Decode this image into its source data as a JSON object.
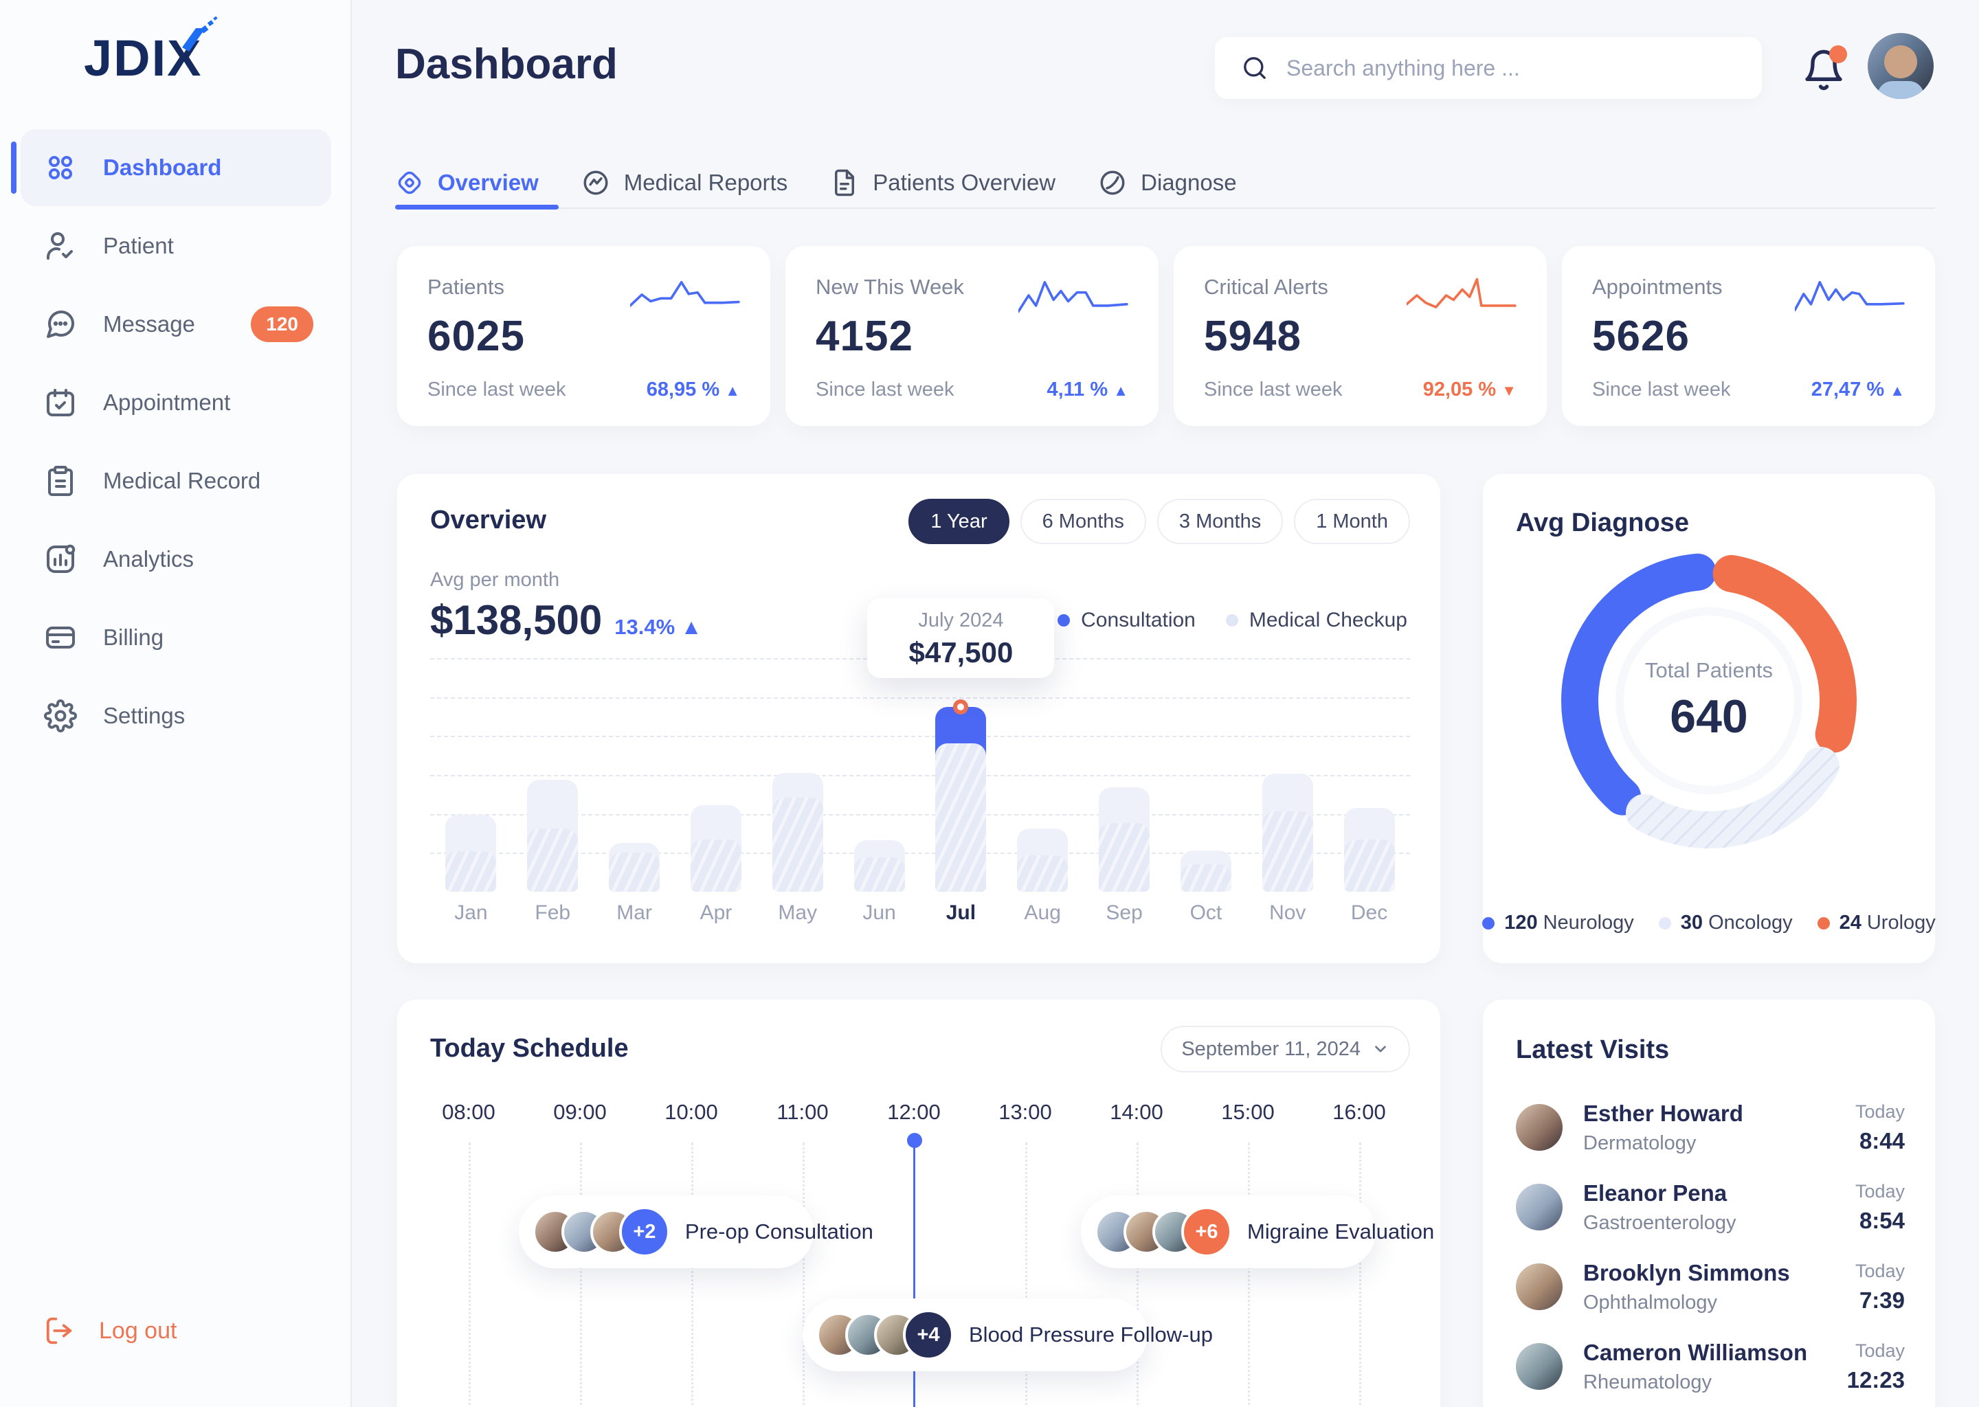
{
  "brand": {
    "name": "JDIX"
  },
  "sidebar": {
    "items": [
      {
        "label": "Dashboard",
        "icon": "grid-icon",
        "active": true
      },
      {
        "label": "Patient",
        "icon": "patient-icon",
        "active": false
      },
      {
        "label": "Message",
        "icon": "message-icon",
        "active": false,
        "badge": "120"
      },
      {
        "label": "Appointment",
        "icon": "appointment-icon",
        "active": false
      },
      {
        "label": "Medical Record",
        "icon": "medical-record-icon",
        "active": false
      },
      {
        "label": "Analytics",
        "icon": "analytics-icon",
        "active": false
      },
      {
        "label": "Billing",
        "icon": "billing-icon",
        "active": false
      },
      {
        "label": "Settings",
        "icon": "settings-icon",
        "active": false
      }
    ],
    "logout_label": "Log out"
  },
  "header": {
    "title": "Dashboard",
    "search_placeholder": "Search anything here ..."
  },
  "tabs": [
    {
      "label": "Overview",
      "icon": "overview-tab-icon",
      "active": true
    },
    {
      "label": "Medical Reports",
      "icon": "medical-reports-tab-icon",
      "active": false
    },
    {
      "label": "Patients Overview",
      "icon": "patients-overview-tab-icon",
      "active": false
    },
    {
      "label": "Diagnose",
      "icon": "diagnose-tab-icon",
      "active": false
    }
  ],
  "stat_cards": [
    {
      "label": "Patients",
      "value": "6025",
      "sub": "Since last week",
      "delta": "68,95 %",
      "direction": "up",
      "accent": "#4a6bf5",
      "spark": "0,40 16,25 28,34 42,30 56,30 70,8 80,24 92,22 102,36 126,36 148,35"
    },
    {
      "label": "New This Week",
      "value": "4152",
      "sub": "Since last week",
      "delta": "4,11 %",
      "direction": "up",
      "accent": "#4a6bf5",
      "spark": "0,48 14,26 24,40 36,8 48,32 58,20 68,34 80,22 92,22 102,40 122,40 148,38"
    },
    {
      "label": "Critical Alerts",
      "value": "5948",
      "sub": "Since last week",
      "delta": "92,05 %",
      "direction": "down",
      "accent": "#f0714c",
      "spark": "0,38 14,26 26,36 40,42 54,26 64,32 76,18 86,28 96,4 102,40 122,40 148,40"
    },
    {
      "label": "Appointments",
      "value": "5626",
      "sub": "Since last week",
      "delta": "27,47 %",
      "direction": "up",
      "accent": "#4a6bf5",
      "spark": "0,46 12,24 22,38 34,8 46,32 56,18 66,32 78,22 88,24 98,38 118,38 148,37"
    }
  ],
  "overview": {
    "title": "Overview",
    "range_options": [
      {
        "label": "1 Year",
        "active": true
      },
      {
        "label": "6 Months",
        "active": false
      },
      {
        "label": "3 Months",
        "active": false
      },
      {
        "label": "1 Month",
        "active": false
      }
    ],
    "avg_label": "Avg per month",
    "avg_value": "$138,500",
    "avg_delta": "13.4%",
    "legend": [
      {
        "label": "Consultation",
        "color": "#4a6bf5"
      },
      {
        "label": "Medical Checkup",
        "color": "#dfe6f6"
      }
    ],
    "tooltip": {
      "title": "July 2024",
      "value": "$47,500"
    }
  },
  "chart_data": [
    {
      "type": "bar",
      "title": "Overview monthly revenue",
      "categories": [
        "Jan",
        "Feb",
        "Mar",
        "Apr",
        "May",
        "Jun",
        "Jul",
        "Aug",
        "Sep",
        "Oct",
        "Nov",
        "Dec"
      ],
      "series": [
        {
          "name": "Consultation",
          "values": [
            10500,
            16200,
            10000,
            13500,
            24100,
            8800,
            38200,
            9300,
            17600,
            7000,
            20600,
            13500
          ]
        },
        {
          "name": "Medical Checkup total",
          "values": [
            19700,
            28700,
            12500,
            22300,
            30600,
            13200,
            47500,
            16200,
            26900,
            10600,
            30300,
            21500
          ]
        }
      ],
      "highlight_month": "Jul",
      "ylim": [
        0,
        60000
      ],
      "grid": "dashed-horizontal",
      "legend_position": "top-right",
      "tooltip": {
        "month": "July 2024",
        "value": 47500
      }
    },
    {
      "type": "pie",
      "title": "Avg Diagnose",
      "center_label": "Total Patients",
      "center_value": 640,
      "slices": [
        {
          "label": "Neurology",
          "value": 120,
          "color": "#4a6bf5"
        },
        {
          "label": "Oncology",
          "value": 30,
          "color": "#e7ecf8"
        },
        {
          "label": "Urology",
          "value": 24,
          "color": "#f0714c"
        }
      ],
      "legend_position": "bottom",
      "arc_hints": [
        {
          "from": 222,
          "to": 355,
          "color": "#4a6bf5",
          "kind": "solid"
        },
        {
          "from": 10,
          "to": 105,
          "color": "#f0714c",
          "kind": "solid"
        },
        {
          "from": 120,
          "to": 210,
          "color": "hatch",
          "kind": "hatch"
        }
      ]
    }
  ],
  "avg_diagnose": {
    "title": "Avg Diagnose",
    "center_label": "Total Patients",
    "center_value": "640",
    "legend": [
      {
        "value": "120",
        "label": "Neurology",
        "color": "#4a6bf5"
      },
      {
        "value": "30",
        "label": "Oncology",
        "color": "#e3e9f8"
      },
      {
        "value": "24",
        "label": "Urology",
        "color": "#f0714c"
      }
    ]
  },
  "schedule": {
    "title": "Today Schedule",
    "date_label": "September 11, 2024",
    "times": [
      "08:00",
      "09:00",
      "10:00",
      "11:00",
      "12:00",
      "13:00",
      "14:00",
      "15:00",
      "16:00"
    ],
    "current_time_hour": 12,
    "events": [
      {
        "label": "Pre-op Consultation",
        "extra": "+2",
        "badge_color": "#4a6bf5",
        "start": 8.45,
        "end": 11.1,
        "row": 0
      },
      {
        "label": "Migraine Evaluation",
        "extra": "+6",
        "badge_color": "#f0714c",
        "start": 13.5,
        "end": 16.15,
        "row": 0
      },
      {
        "label": "Blood Pressure Follow-up",
        "extra": "+4",
        "badge_color": "#272e58",
        "start": 11.0,
        "end": 14.1,
        "row": 1
      }
    ]
  },
  "latest_visits": {
    "title": "Latest Visits",
    "rows": [
      {
        "name": "Esther Howard",
        "specialty": "Dermatology",
        "day": "Today",
        "time": "8:44"
      },
      {
        "name": "Eleanor Pena",
        "specialty": "Gastroenterology",
        "day": "Today",
        "time": "8:54"
      },
      {
        "name": "Brooklyn Simmons",
        "specialty": "Ophthalmology",
        "day": "Today",
        "time": "7:39"
      },
      {
        "name": "Cameron Williamson",
        "specialty": "Rheumatology",
        "day": "Today",
        "time": "12:23"
      }
    ]
  }
}
